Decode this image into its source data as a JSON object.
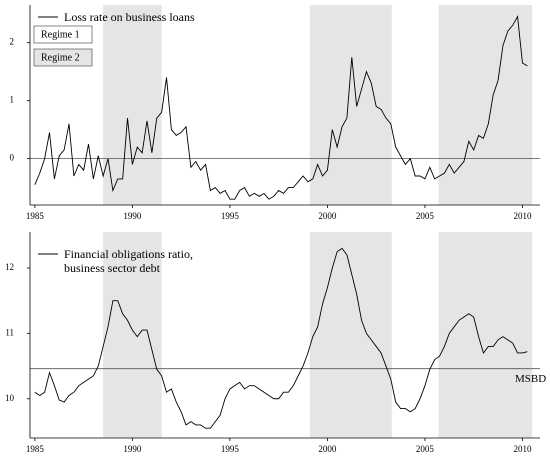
{
  "chart_data": [
    {
      "type": "line",
      "xlim": [
        1984.75,
        2010.9
      ],
      "ylim": [
        -0.8,
        2.65
      ],
      "xticks": [
        1985,
        1990,
        1995,
        2000,
        2005,
        2010
      ],
      "yticks": [
        0,
        1,
        2
      ],
      "hline": {
        "value": 0
      },
      "shaded": [
        [
          1988.5,
          1991.5
        ],
        [
          1999.1,
          2003.3
        ],
        [
          2005.7,
          2010.5
        ]
      ],
      "regimes": [
        {
          "label": "Regime 1",
          "color": "#ffffff"
        },
        {
          "label": "Regime 2",
          "color": "#e5e5e5"
        }
      ],
      "x": [
        1985,
        1985.25,
        1985.5,
        1985.75,
        1986,
        1986.25,
        1986.5,
        1986.75,
        1987,
        1987.25,
        1987.5,
        1987.75,
        1988,
        1988.25,
        1988.5,
        1988.75,
        1989,
        1989.25,
        1989.5,
        1989.75,
        1990,
        1990.25,
        1990.5,
        1990.75,
        1991,
        1991.25,
        1991.5,
        1991.75,
        1992,
        1992.25,
        1992.5,
        1992.75,
        1993,
        1993.25,
        1993.5,
        1993.75,
        1994,
        1994.25,
        1994.5,
        1994.75,
        1995,
        1995.25,
        1995.5,
        1995.75,
        1996,
        1996.25,
        1996.5,
        1996.75,
        1997,
        1997.25,
        1997.5,
        1997.75,
        1998,
        1998.25,
        1998.5,
        1998.75,
        1999,
        1999.25,
        1999.5,
        1999.75,
        2000,
        2000.25,
        2000.5,
        2000.75,
        2001,
        2001.25,
        2001.5,
        2001.75,
        2002,
        2002.25,
        2002.5,
        2002.75,
        2003,
        2003.25,
        2003.5,
        2003.75,
        2004,
        2004.25,
        2004.5,
        2004.75,
        2005,
        2005.25,
        2005.5,
        2005.75,
        2006,
        2006.25,
        2006.5,
        2006.75,
        2007,
        2007.25,
        2007.5,
        2007.75,
        2008,
        2008.25,
        2008.5,
        2008.75,
        2009,
        2009.25,
        2009.5,
        2009.75,
        2010,
        2010.25
      ],
      "series": [
        {
          "name": "Loss rate on business loans",
          "color": "#000000",
          "values": [
            -0.45,
            -0.25,
            0.0,
            0.45,
            -0.35,
            0.05,
            0.15,
            0.6,
            -0.3,
            -0.1,
            -0.2,
            0.25,
            -0.35,
            0.05,
            -0.3,
            0.0,
            -0.55,
            -0.35,
            -0.35,
            0.7,
            -0.1,
            0.2,
            0.1,
            0.65,
            0.1,
            0.7,
            0.8,
            1.4,
            0.5,
            0.4,
            0.45,
            0.55,
            -0.15,
            -0.05,
            -0.2,
            -0.1,
            -0.55,
            -0.5,
            -0.6,
            -0.55,
            -0.7,
            -0.7,
            -0.55,
            -0.5,
            -0.65,
            -0.6,
            -0.65,
            -0.6,
            -0.7,
            -0.65,
            -0.55,
            -0.6,
            -0.5,
            -0.5,
            -0.4,
            -0.3,
            -0.4,
            -0.35,
            -0.1,
            -0.3,
            -0.2,
            0.5,
            0.2,
            0.55,
            0.7,
            1.75,
            0.9,
            1.2,
            1.5,
            1.3,
            0.9,
            0.85,
            0.7,
            0.6,
            0.2,
            0.05,
            -0.1,
            0.0,
            -0.3,
            -0.3,
            -0.35,
            -0.15,
            -0.35,
            -0.3,
            -0.25,
            -0.1,
            -0.25,
            -0.15,
            -0.05,
            0.3,
            0.15,
            0.4,
            0.35,
            0.6,
            1.1,
            1.35,
            1.95,
            2.2,
            2.3,
            2.45,
            1.65,
            1.6
          ]
        }
      ]
    },
    {
      "type": "line",
      "xlim": [
        1984.75,
        2010.9
      ],
      "ylim": [
        9.4,
        12.55
      ],
      "xticks": [
        1985,
        1990,
        1995,
        2000,
        2005,
        2010
      ],
      "yticks": [
        10,
        11,
        12
      ],
      "hline": {
        "value": 10.46,
        "label": "MSBD"
      },
      "shaded": [
        [
          1988.5,
          1991.5
        ],
        [
          1999.1,
          2003.3
        ],
        [
          2005.7,
          2010.5
        ]
      ],
      "x": [
        1985,
        1985.25,
        1985.5,
        1985.75,
        1986,
        1986.25,
        1986.5,
        1986.75,
        1987,
        1987.25,
        1987.5,
        1987.75,
        1988,
        1988.25,
        1988.5,
        1988.75,
        1989,
        1989.25,
        1989.5,
        1989.75,
        1990,
        1990.25,
        1990.5,
        1990.75,
        1991,
        1991.25,
        1991.5,
        1991.75,
        1992,
        1992.25,
        1992.5,
        1992.75,
        1993,
        1993.25,
        1993.5,
        1993.75,
        1994,
        1994.25,
        1994.5,
        1994.75,
        1995,
        1995.25,
        1995.5,
        1995.75,
        1996,
        1996.25,
        1996.5,
        1996.75,
        1997,
        1997.25,
        1997.5,
        1997.75,
        1998,
        1998.25,
        1998.5,
        1998.75,
        1999,
        1999.25,
        1999.5,
        1999.75,
        2000,
        2000.25,
        2000.5,
        2000.75,
        2001,
        2001.25,
        2001.5,
        2001.75,
        2002,
        2002.25,
        2002.5,
        2002.75,
        2003,
        2003.25,
        2003.5,
        2003.75,
        2004,
        2004.25,
        2004.5,
        2004.75,
        2005,
        2005.25,
        2005.5,
        2005.75,
        2006,
        2006.25,
        2006.5,
        2006.75,
        2007,
        2007.25,
        2007.5,
        2007.75,
        2008,
        2008.25,
        2008.5,
        2008.75,
        2009,
        2009.25,
        2009.5,
        2009.75,
        2010,
        2010.25
      ],
      "series": [
        {
          "name": "Financial obligations ratio, business sector debt",
          "color": "#000000",
          "values": [
            10.1,
            10.05,
            10.1,
            10.4,
            10.2,
            9.98,
            9.95,
            10.05,
            10.1,
            10.2,
            10.25,
            10.3,
            10.35,
            10.5,
            10.8,
            11.1,
            11.5,
            11.5,
            11.3,
            11.2,
            11.05,
            10.95,
            11.05,
            11.05,
            10.75,
            10.45,
            10.35,
            10.1,
            10.15,
            9.95,
            9.8,
            9.6,
            9.65,
            9.6,
            9.6,
            9.55,
            9.55,
            9.65,
            9.75,
            10.0,
            10.15,
            10.2,
            10.25,
            10.15,
            10.2,
            10.2,
            10.15,
            10.1,
            10.05,
            10.0,
            10.0,
            10.1,
            10.1,
            10.2,
            10.35,
            10.5,
            10.7,
            10.95,
            11.1,
            11.45,
            11.7,
            12.0,
            12.25,
            12.3,
            12.2,
            11.9,
            11.6,
            11.2,
            11.0,
            10.9,
            10.8,
            10.7,
            10.5,
            10.3,
            9.95,
            9.85,
            9.85,
            9.8,
            9.85,
            10.0,
            10.2,
            10.45,
            10.6,
            10.65,
            10.8,
            11.0,
            11.1,
            11.2,
            11.25,
            11.3,
            11.25,
            10.95,
            10.7,
            10.8,
            10.8,
            10.9,
            10.95,
            10.9,
            10.85,
            10.7,
            10.7,
            10.72
          ]
        }
      ]
    }
  ]
}
